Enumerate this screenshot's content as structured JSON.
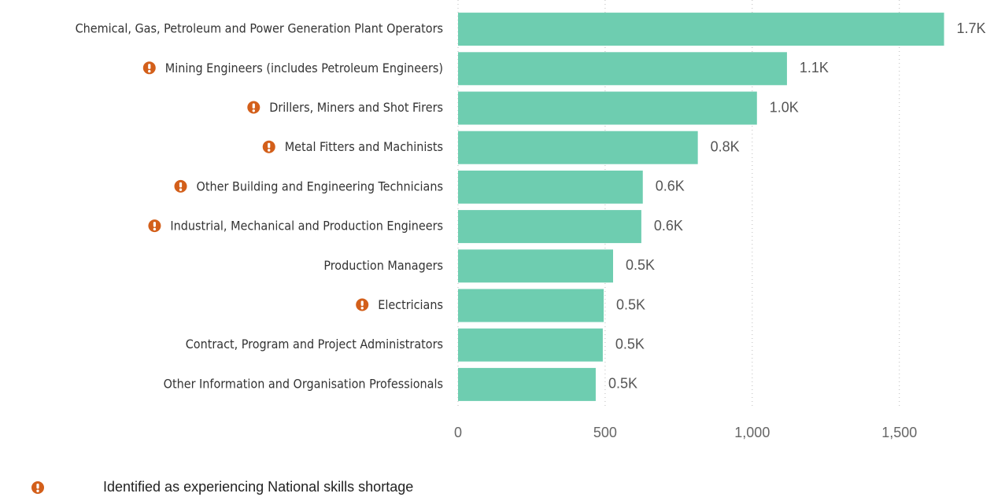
{
  "chart_data": {
    "type": "bar",
    "orientation": "horizontal",
    "categories": [
      "Chemical, Gas, Petroleum and Power Generation Plant Operators",
      "Mining Engineers (includes Petroleum Engineers)",
      "Drillers, Miners and Shot Firers",
      "Metal Fitters and Machinists",
      "Other Building and Engineering Technicians",
      "Industrial, Mechanical and Production Engineers",
      "Production Managers",
      "Electricians",
      "Contract, Program and Project Administrators",
      "Other Information and Organisation Professionals"
    ],
    "values": [
      1652,
      1118,
      1016,
      815,
      628,
      623,
      527,
      495,
      492,
      468
    ],
    "value_labels": [
      "1.7K",
      "1.1K",
      "1.0K",
      "0.8K",
      "0.6K",
      "0.6K",
      "0.5K",
      "0.5K",
      "0.5K",
      "0.5K"
    ],
    "shortage": [
      false,
      true,
      true,
      true,
      true,
      true,
      false,
      true,
      false,
      false
    ],
    "color": "#6ecdb0",
    "flag_color": "#d35f1a",
    "xlim": [
      0,
      1680
    ],
    "xticks": [
      0,
      500,
      {
        "value": 1000,
        "label": "1,000"
      },
      {
        "value": 1500,
        "label": "1,500"
      }
    ],
    "grid": true,
    "legend": "Identified as experiencing National skills shortage"
  }
}
